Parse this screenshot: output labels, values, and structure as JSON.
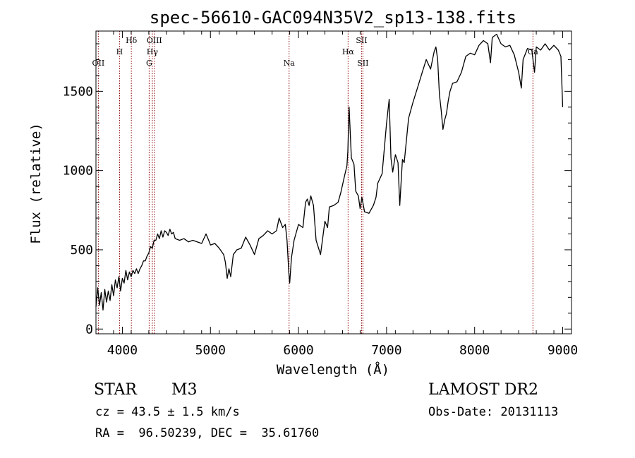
{
  "chart_data": {
    "type": "line",
    "title": "spec-56610-GAC094N35V2_sp13-138.fits",
    "xlabel": "Wavelength (Å)",
    "ylabel": "Flux (relative)",
    "xlim": [
      3700,
      9100
    ],
    "ylim": [
      -30,
      1880
    ],
    "xticks": [
      4000,
      5000,
      6000,
      7000,
      8000,
      9000
    ],
    "yticks": [
      0,
      500,
      1000,
      1500
    ],
    "line_color": "#000000",
    "marker_color": "#8b0000",
    "series": [
      {
        "points": [
          [
            3700,
            140
          ],
          [
            3720,
            260
          ],
          [
            3740,
            150
          ],
          [
            3760,
            230
          ],
          [
            3780,
            120
          ],
          [
            3800,
            250
          ],
          [
            3820,
            170
          ],
          [
            3840,
            240
          ],
          [
            3860,
            180
          ],
          [
            3880,
            280
          ],
          [
            3900,
            210
          ],
          [
            3920,
            310
          ],
          [
            3940,
            260
          ],
          [
            3960,
            330
          ],
          [
            3980,
            240
          ],
          [
            4000,
            320
          ],
          [
            4020,
            290
          ],
          [
            4040,
            370
          ],
          [
            4060,
            310
          ],
          [
            4080,
            360
          ],
          [
            4100,
            330
          ],
          [
            4120,
            370
          ],
          [
            4140,
            350
          ],
          [
            4160,
            380
          ],
          [
            4180,
            350
          ],
          [
            4200,
            380
          ],
          [
            4220,
            400
          ],
          [
            4240,
            430
          ],
          [
            4260,
            430
          ],
          [
            4280,
            460
          ],
          [
            4300,
            480
          ],
          [
            4320,
            520
          ],
          [
            4340,
            510
          ],
          [
            4360,
            560
          ],
          [
            4380,
            560
          ],
          [
            4400,
            600
          ],
          [
            4420,
            570
          ],
          [
            4440,
            620
          ],
          [
            4460,
            580
          ],
          [
            4480,
            620
          ],
          [
            4500,
            610
          ],
          [
            4520,
            590
          ],
          [
            4540,
            630
          ],
          [
            4560,
            600
          ],
          [
            4580,
            610
          ],
          [
            4600,
            570
          ],
          [
            4650,
            560
          ],
          [
            4700,
            570
          ],
          [
            4750,
            550
          ],
          [
            4800,
            560
          ],
          [
            4850,
            550
          ],
          [
            4900,
            540
          ],
          [
            4950,
            600
          ],
          [
            4980,
            560
          ],
          [
            5000,
            530
          ],
          [
            5050,
            540
          ],
          [
            5100,
            510
          ],
          [
            5150,
            470
          ],
          [
            5170,
            420
          ],
          [
            5190,
            320
          ],
          [
            5210,
            380
          ],
          [
            5230,
            330
          ],
          [
            5260,
            470
          ],
          [
            5300,
            500
          ],
          [
            5350,
            510
          ],
          [
            5400,
            580
          ],
          [
            5450,
            530
          ],
          [
            5500,
            470
          ],
          [
            5550,
            570
          ],
          [
            5600,
            590
          ],
          [
            5650,
            620
          ],
          [
            5700,
            600
          ],
          [
            5750,
            620
          ],
          [
            5780,
            700
          ],
          [
            5820,
            640
          ],
          [
            5850,
            660
          ],
          [
            5870,
            560
          ],
          [
            5890,
            360
          ],
          [
            5900,
            290
          ],
          [
            5920,
            450
          ],
          [
            5950,
            560
          ],
          [
            6000,
            660
          ],
          [
            6050,
            640
          ],
          [
            6080,
            800
          ],
          [
            6100,
            820
          ],
          [
            6120,
            780
          ],
          [
            6140,
            840
          ],
          [
            6170,
            780
          ],
          [
            6200,
            560
          ],
          [
            6250,
            470
          ],
          [
            6300,
            680
          ],
          [
            6330,
            640
          ],
          [
            6350,
            770
          ],
          [
            6400,
            780
          ],
          [
            6450,
            800
          ],
          [
            6480,
            860
          ],
          [
            6520,
            960
          ],
          [
            6550,
            1030
          ],
          [
            6560,
            1120
          ],
          [
            6575,
            1400
          ],
          [
            6600,
            1080
          ],
          [
            6630,
            1040
          ],
          [
            6650,
            870
          ],
          [
            6680,
            840
          ],
          [
            6700,
            760
          ],
          [
            6720,
            830
          ],
          [
            6750,
            740
          ],
          [
            6800,
            730
          ],
          [
            6850,
            780
          ],
          [
            6880,
            830
          ],
          [
            6900,
            920
          ],
          [
            6950,
            980
          ],
          [
            7000,
            1300
          ],
          [
            7030,
            1450
          ],
          [
            7050,
            1080
          ],
          [
            7070,
            990
          ],
          [
            7100,
            1100
          ],
          [
            7130,
            1050
          ],
          [
            7150,
            780
          ],
          [
            7180,
            1070
          ],
          [
            7200,
            1050
          ],
          [
            7250,
            1330
          ],
          [
            7300,
            1430
          ],
          [
            7350,
            1520
          ],
          [
            7400,
            1610
          ],
          [
            7450,
            1700
          ],
          [
            7500,
            1640
          ],
          [
            7540,
            1750
          ],
          [
            7560,
            1780
          ],
          [
            7580,
            1700
          ],
          [
            7600,
            1480
          ],
          [
            7620,
            1380
          ],
          [
            7640,
            1260
          ],
          [
            7660,
            1320
          ],
          [
            7680,
            1360
          ],
          [
            7700,
            1440
          ],
          [
            7720,
            1500
          ],
          [
            7750,
            1550
          ],
          [
            7800,
            1560
          ],
          [
            7850,
            1620
          ],
          [
            7900,
            1720
          ],
          [
            7950,
            1740
          ],
          [
            8000,
            1730
          ],
          [
            8050,
            1790
          ],
          [
            8100,
            1820
          ],
          [
            8150,
            1800
          ],
          [
            8180,
            1680
          ],
          [
            8200,
            1840
          ],
          [
            8250,
            1860
          ],
          [
            8300,
            1800
          ],
          [
            8350,
            1780
          ],
          [
            8400,
            1790
          ],
          [
            8450,
            1730
          ],
          [
            8500,
            1620
          ],
          [
            8530,
            1520
          ],
          [
            8550,
            1700
          ],
          [
            8600,
            1770
          ],
          [
            8650,
            1760
          ],
          [
            8680,
            1620
          ],
          [
            8700,
            1780
          ],
          [
            8750,
            1760
          ],
          [
            8800,
            1800
          ],
          [
            8850,
            1760
          ],
          [
            8900,
            1790
          ],
          [
            8950,
            1760
          ],
          [
            8980,
            1720
          ],
          [
            9000,
            1400
          ]
        ]
      }
    ],
    "line_markers": [
      {
        "label": "OII",
        "x": 3727,
        "row": 4
      },
      {
        "label": "H",
        "x": 3968,
        "row": 2
      },
      {
        "label": "Hδ",
        "x": 4102,
        "row": 1
      },
      {
        "label": "G",
        "x": 4304,
        "row": 4
      },
      {
        "label": "Hγ",
        "x": 4340,
        "row": 3
      },
      {
        "label": "OIII",
        "x": 4363,
        "row": 1
      },
      {
        "label": "Na",
        "x": 5893,
        "row": 4
      },
      {
        "label": "Hα",
        "x": 6563,
        "row": 2
      },
      {
        "label": "SII",
        "x": 6716,
        "row": 1
      },
      {
        "label": "SII",
        "x": 6731,
        "row": 4
      },
      {
        "label": "Ca",
        "x": 8662,
        "row": 2
      }
    ]
  },
  "info": {
    "object_type": "STAR",
    "subclass": "M3",
    "redshift": "cz = 43.5 ± 1.5 km/s",
    "coords": "RA =  96.50239, DEC =  35.61760",
    "survey": "LAMOST DR2",
    "obs_date": "Obs-Date: 20131113"
  }
}
